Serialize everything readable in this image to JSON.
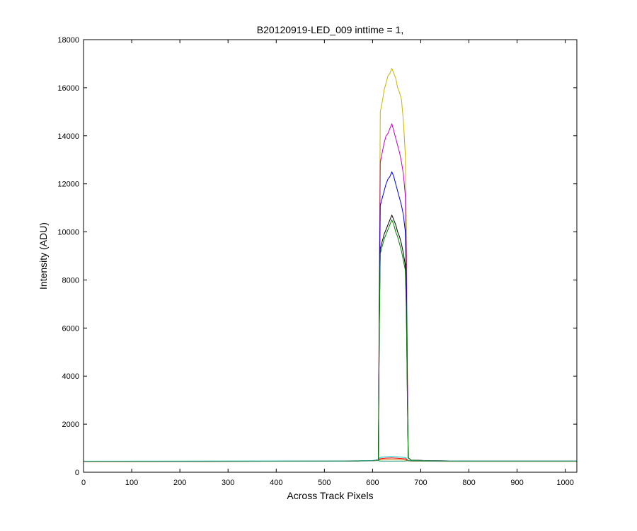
{
  "chart_data": {
    "type": "line",
    "title": "B20120919-LED_009 inttime = 1,",
    "xlabel": "Across Track Pixels",
    "ylabel": "Intensity (ADU)",
    "xlim": [
      0,
      1024
    ],
    "ylim": [
      0,
      18000
    ],
    "xticks": [
      0,
      100,
      200,
      300,
      400,
      500,
      600,
      700,
      800,
      900,
      1000
    ],
    "yticks": [
      0,
      2000,
      4000,
      6000,
      8000,
      10000,
      12000,
      14000,
      16000,
      18000
    ],
    "grid": false,
    "legend": "none",
    "x": [
      0,
      540,
      600,
      612,
      614,
      616,
      620,
      624,
      628,
      632,
      636,
      640,
      644,
      648,
      652,
      656,
      660,
      664,
      668,
      670,
      672,
      674,
      680,
      720,
      760,
      800,
      1024
    ],
    "series": [
      {
        "color": "#c8b400",
        "values": [
          450,
          460,
          480,
          520,
          8000,
          15000,
          15400,
          15900,
          16200,
          16500,
          16600,
          16800,
          16600,
          16400,
          16000,
          15800,
          15500,
          14600,
          13200,
          10300,
          5000,
          600,
          500,
          480,
          470,
          460,
          460
        ]
      },
      {
        "color": "#bf00bf",
        "values": [
          450,
          460,
          480,
          520,
          7500,
          12900,
          13300,
          13700,
          14000,
          14100,
          14300,
          14500,
          14200,
          13900,
          13600,
          13300,
          12900,
          12400,
          11500,
          9100,
          4500,
          600,
          500,
          480,
          470,
          460,
          460
        ]
      },
      {
        "color": "#0000cc",
        "values": [
          450,
          460,
          480,
          520,
          6800,
          11100,
          11400,
          11700,
          12000,
          12200,
          12300,
          12500,
          12300,
          12000,
          11700,
          11400,
          11100,
          10700,
          10000,
          8000,
          4000,
          600,
          500,
          480,
          470,
          460,
          460
        ]
      },
      {
        "color": "#000000",
        "values": [
          450,
          460,
          480,
          520,
          6000,
          9300,
          9600,
          9900,
          10100,
          10300,
          10500,
          10700,
          10500,
          10300,
          10000,
          9800,
          9500,
          9100,
          8600,
          7000,
          3500,
          600,
          500,
          480,
          470,
          460,
          460
        ]
      },
      {
        "color": "#008000",
        "values": [
          450,
          460,
          480,
          520,
          6000,
          9100,
          9400,
          9700,
          9900,
          10100,
          10300,
          10500,
          10300,
          10000,
          9800,
          9500,
          9200,
          8800,
          8400,
          6800,
          3400,
          600,
          500,
          480,
          470,
          460,
          460
        ]
      },
      {
        "color": "#00bfbf",
        "values": [
          460,
          470,
          490,
          520,
          580,
          620,
          630,
          640,
          640,
          645,
          650,
          650,
          650,
          645,
          640,
          635,
          630,
          620,
          610,
          580,
          530,
          490,
          480,
          475,
          470,
          465,
          465
        ]
      },
      {
        "color": "#ff0000",
        "values": [
          450,
          460,
          480,
          500,
          540,
          560,
          570,
          580,
          585,
          590,
          590,
          595,
          590,
          585,
          580,
          575,
          570,
          565,
          560,
          540,
          510,
          480,
          470,
          465,
          460,
          458,
          458
        ]
      },
      {
        "color": "#e07000",
        "values": [
          445,
          455,
          470,
          490,
          510,
          520,
          525,
          530,
          530,
          535,
          535,
          535,
          535,
          530,
          530,
          525,
          520,
          515,
          510,
          500,
          490,
          470,
          460,
          455,
          450,
          450,
          450
        ]
      },
      {
        "color": "#1a9a7a",
        "values": [
          455,
          462,
          475,
          485,
          470,
          465,
          465,
          465,
          465,
          465,
          465,
          465,
          465,
          465,
          465,
          465,
          465,
          465,
          465,
          470,
          480,
          478,
          470,
          465,
          462,
          460,
          460
        ]
      }
    ]
  }
}
